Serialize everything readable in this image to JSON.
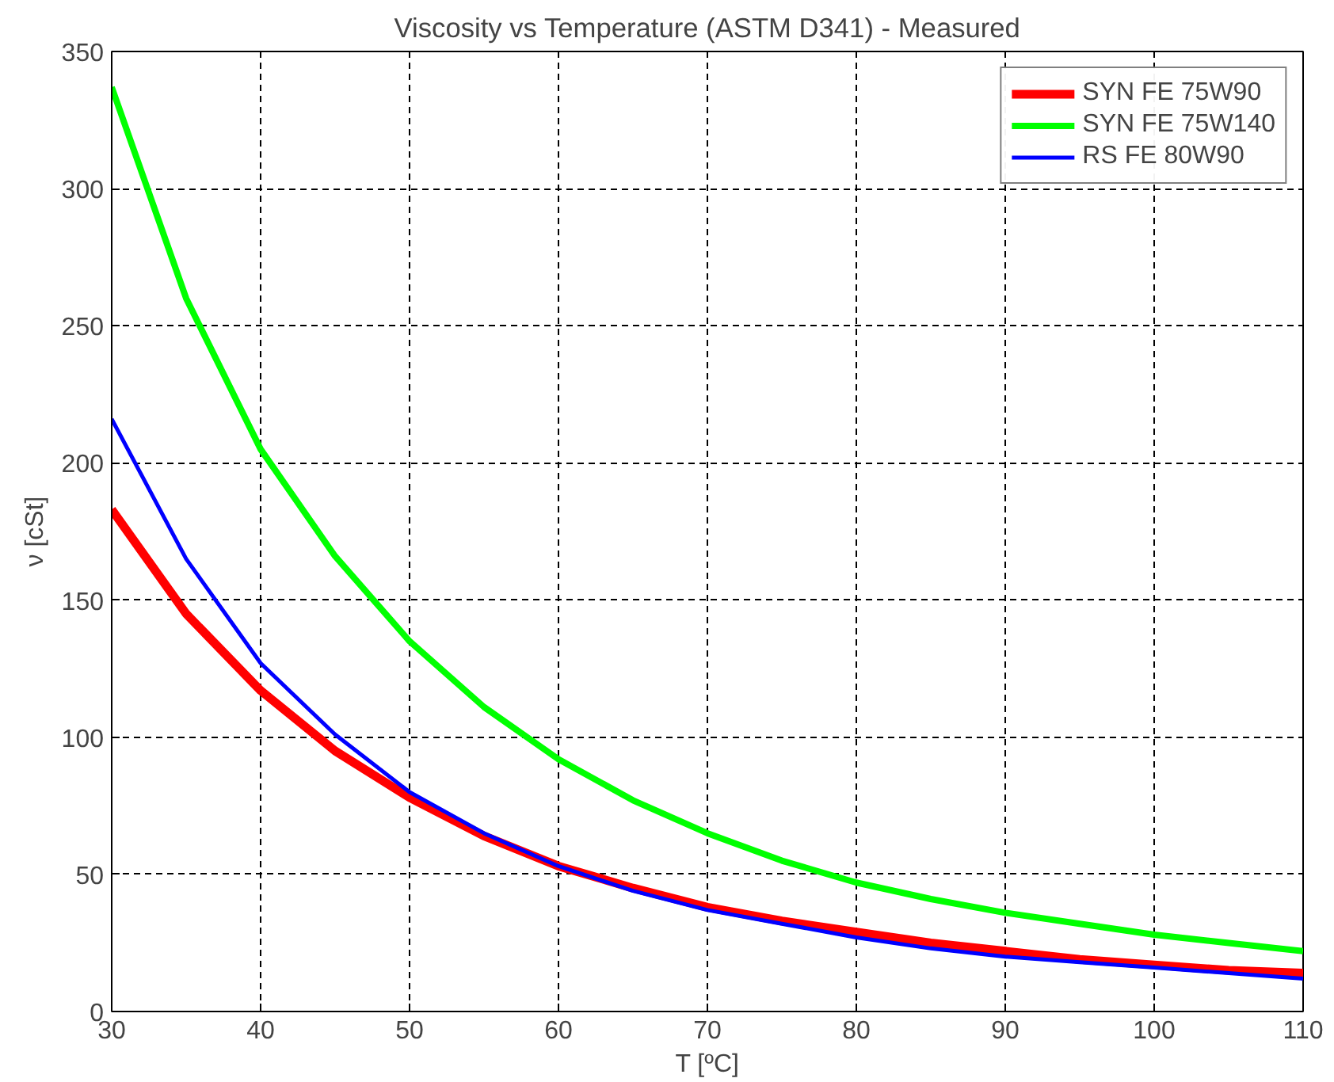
{
  "chart_data": {
    "type": "line",
    "title": "Viscosity vs Temperature (ASTM D341) - Measured",
    "xlabel": "T [ºC]",
    "ylabel": "ν [cSt]",
    "x": [
      30,
      35,
      40,
      45,
      50,
      55,
      60,
      65,
      70,
      75,
      80,
      85,
      90,
      95,
      100,
      105,
      110
    ],
    "series": [
      {
        "name": "SYN FE 75W90",
        "color": "#ff0000",
        "values": [
          183,
          145,
          117,
          95,
          78,
          64,
          53,
          45,
          38,
          33,
          29,
          25,
          22,
          19,
          17,
          15,
          14
        ]
      },
      {
        "name": "SYN FE 75W140",
        "color": "#00ff00",
        "values": [
          337,
          260,
          205,
          166,
          135,
          111,
          92,
          77,
          65,
          55,
          47,
          41,
          36,
          32,
          28,
          25,
          22
        ]
      },
      {
        "name": "RS FE 80W90",
        "color": "#0000ff",
        "values": [
          216,
          165,
          127,
          101,
          80,
          65,
          53,
          44,
          37,
          32,
          27,
          23,
          20,
          18,
          16,
          14,
          12
        ]
      }
    ],
    "xlim": [
      30,
      110
    ],
    "ylim": [
      0,
      350
    ],
    "xticks": [
      30,
      40,
      50,
      60,
      70,
      80,
      90,
      100,
      110
    ],
    "yticks": [
      0,
      50,
      100,
      150,
      200,
      250,
      300,
      350
    ],
    "grid": true,
    "legend": "top right",
    "marker": "none",
    "line_style": "solid"
  }
}
